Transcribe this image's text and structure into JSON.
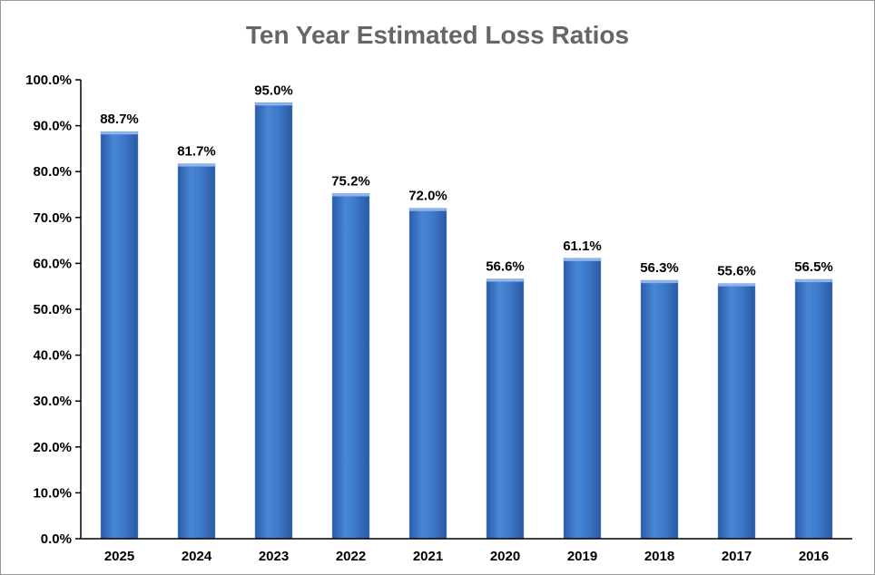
{
  "chart_data": {
    "type": "bar",
    "title": "Ten Year Estimated Loss Ratios",
    "categories": [
      "2025",
      "2024",
      "2023",
      "2022",
      "2021",
      "2020",
      "2019",
      "2018",
      "2017",
      "2016"
    ],
    "values": [
      88.7,
      81.7,
      95.0,
      75.2,
      72.0,
      56.6,
      61.1,
      56.3,
      55.6,
      56.5
    ],
    "data_labels": [
      "88.7%",
      "81.7%",
      "95.0%",
      "75.2%",
      "72.0%",
      "56.6%",
      "61.1%",
      "56.3%",
      "55.6%",
      "56.5%"
    ],
    "ylim": [
      0,
      100
    ],
    "y_ticks": [
      0,
      10,
      20,
      30,
      40,
      50,
      60,
      70,
      80,
      90,
      100
    ],
    "y_tick_labels": [
      "0.0%",
      "10.0%",
      "20.0%",
      "30.0%",
      "40.0%",
      "50.0%",
      "60.0%",
      "70.0%",
      "80.0%",
      "90.0%",
      "100.0%"
    ],
    "xlabel": "",
    "ylabel": "",
    "grid": false,
    "legend": "none",
    "bar_color": "#3a74c4"
  }
}
